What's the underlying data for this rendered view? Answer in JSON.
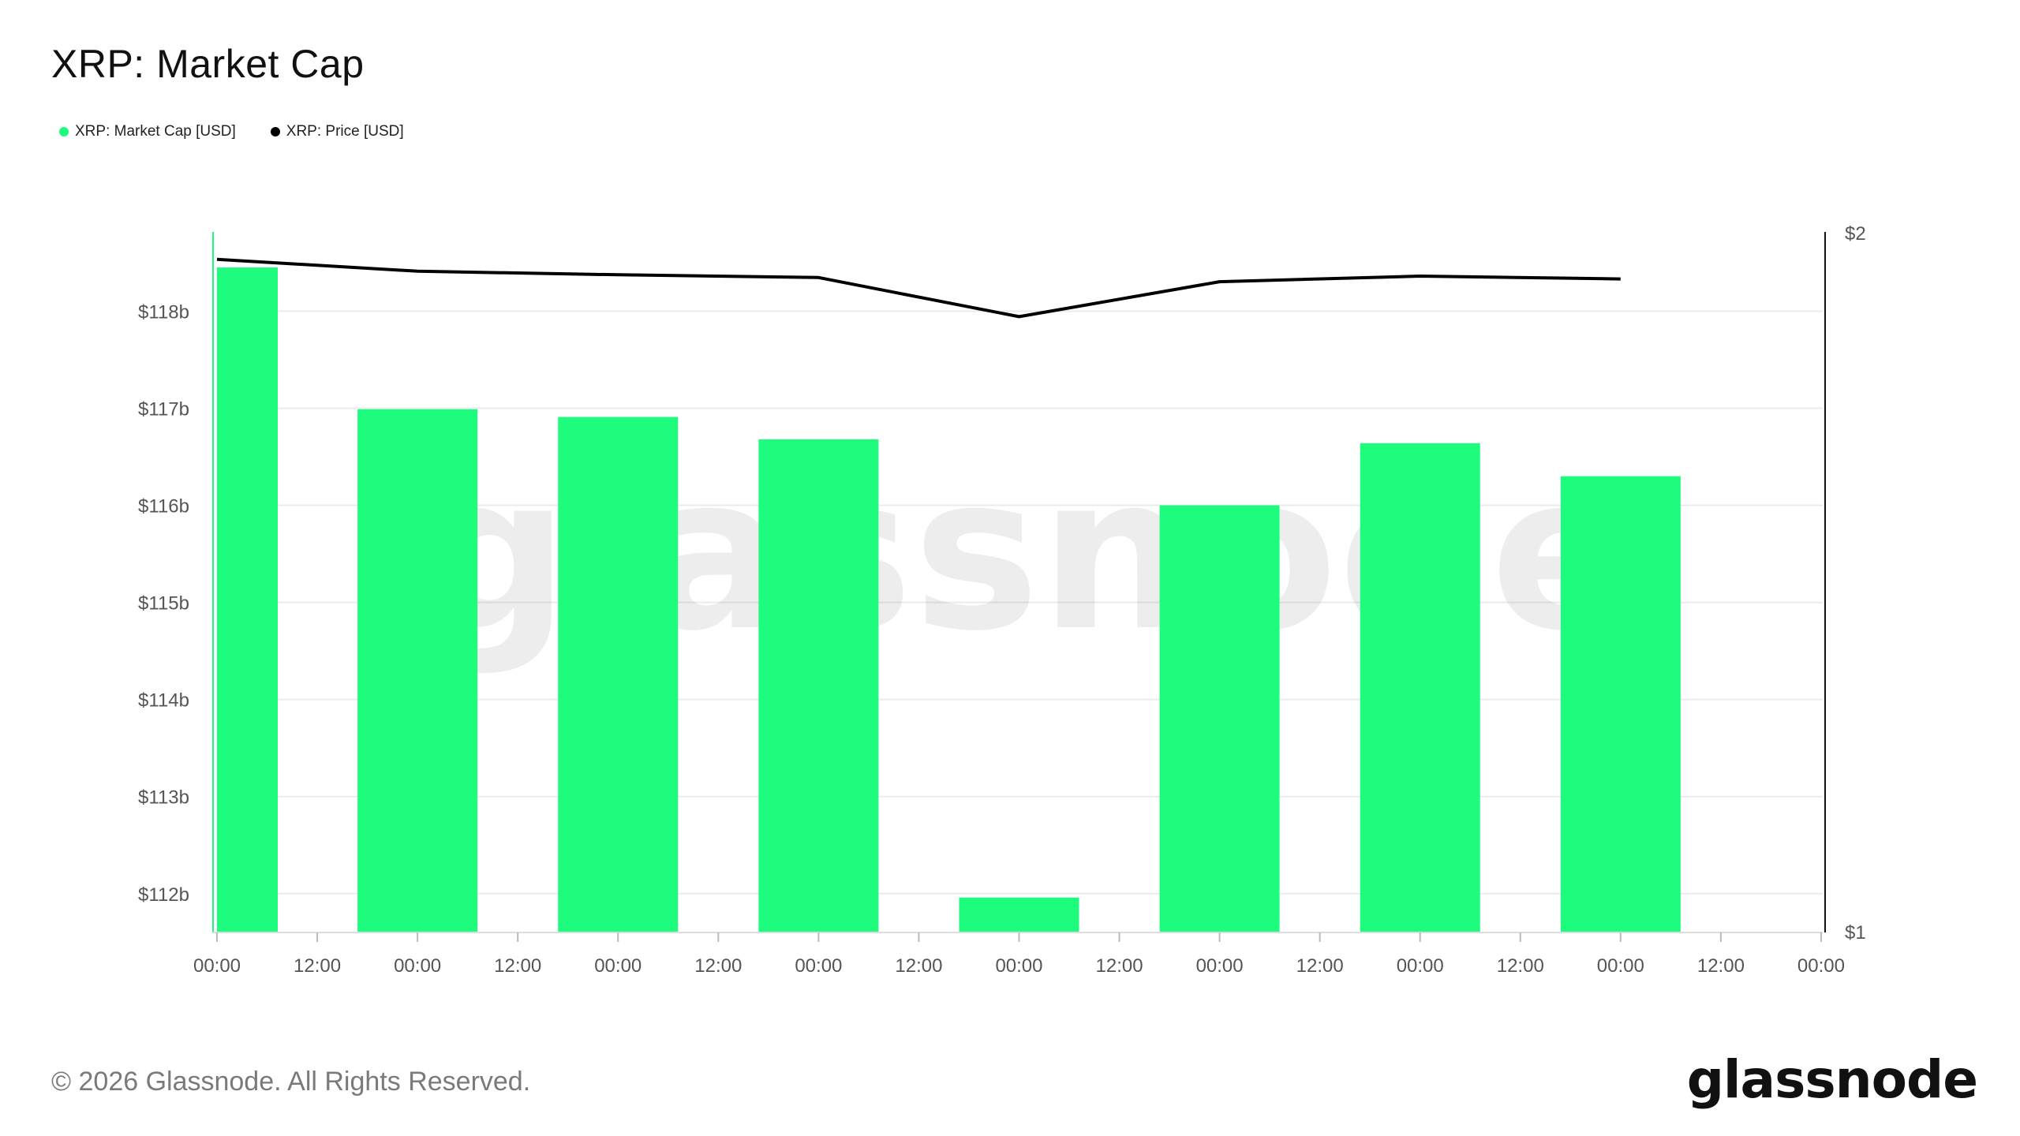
{
  "title": "XRP: Market Cap",
  "legend": [
    {
      "label": "XRP: Market Cap [USD]",
      "color": "#1efc7e"
    },
    {
      "label": "XRP: Price [USD]",
      "color": "#000000"
    }
  ],
  "watermark": "glassnode",
  "footer": "© 2026 Glassnode. All Rights Reserved.",
  "brand": "glassnode",
  "chart_data": {
    "type": "bar",
    "x_ticks": [
      "00:00",
      "12:00",
      "00:00",
      "12:00",
      "00:00",
      "12:00",
      "00:00",
      "12:00",
      "00:00",
      "12:00",
      "00:00",
      "12:00",
      "00:00",
      "12:00",
      "00:00",
      "12:00",
      "00:00"
    ],
    "y_left": {
      "ticks": [
        "$112b",
        "$113b",
        "$114b",
        "$115b",
        "$116b",
        "$117b",
        "$118b"
      ],
      "tick_values": [
        112,
        113,
        114,
        115,
        116,
        117,
        118
      ],
      "range": [
        111.6,
        118.8
      ],
      "unit": "USD billions"
    },
    "y_right": {
      "ticks": [
        "$1",
        "$2"
      ],
      "tick_values": [
        1,
        2
      ],
      "range": [
        1,
        2
      ],
      "unit": "USD"
    },
    "grid": "horizontal",
    "series": [
      {
        "name": "XRP: Market Cap [USD]",
        "type": "bar",
        "axis": "left",
        "color": "#1efc7e",
        "values": [
          118.45,
          116.99,
          116.91,
          116.68,
          111.96,
          116.0,
          116.64,
          116.3
        ]
      },
      {
        "name": "XRP: Price [USD]",
        "type": "line",
        "axis": "right",
        "color": "#000000",
        "values": [
          1.963,
          1.946,
          1.941,
          1.937,
          1.881,
          1.931,
          1.939,
          1.935
        ]
      }
    ]
  }
}
